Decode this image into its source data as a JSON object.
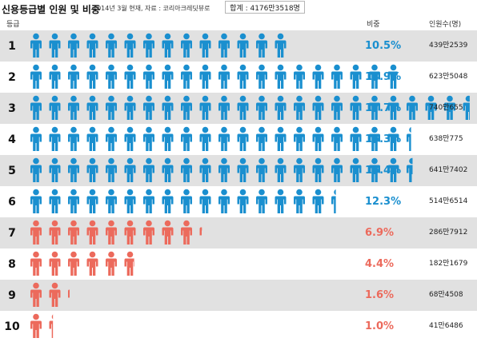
{
  "header": {
    "title": "신용등급별 인원 및 비중",
    "subtitle": "2014년 3월 현재, 자료 : 코리아크레딧뷰로",
    "total": "합계 : 4176만3518명"
  },
  "columns": {
    "grade": "등급",
    "share": "비중",
    "count": "인원수(명)"
  },
  "colors": {
    "blue": "#1a8fcf",
    "red": "#ec6a5c",
    "row_shade": "#e1e1e1"
  },
  "chart_data": {
    "type": "bar",
    "categories": [
      "1",
      "2",
      "3",
      "4",
      "5",
      "6",
      "7",
      "8",
      "9",
      "10"
    ],
    "series": [
      {
        "values": [
          10.5,
          14.9,
          17.7,
          15.3,
          15.4,
          12.3,
          6.9,
          4.4,
          1.6,
          1.0
        ]
      }
    ],
    "share_labels": [
      "10.5%",
      "14.9%",
      "17.7%",
      "15.3%",
      "15.4%",
      "12.3%",
      "6.9%",
      "4.4%",
      "1.6%",
      "1.0%"
    ],
    "count_labels": [
      "439만2539",
      "623만5048",
      "740만655",
      "638만775",
      "641만7402",
      "514만6514",
      "286만7912",
      "182만1679",
      "68만4508",
      "41만6486"
    ],
    "bar_colors": [
      "blue",
      "blue",
      "blue",
      "blue",
      "blue",
      "blue",
      "red",
      "red",
      "red",
      "red"
    ],
    "unit_per_icon": 0.75,
    "icon": "person-icon"
  }
}
